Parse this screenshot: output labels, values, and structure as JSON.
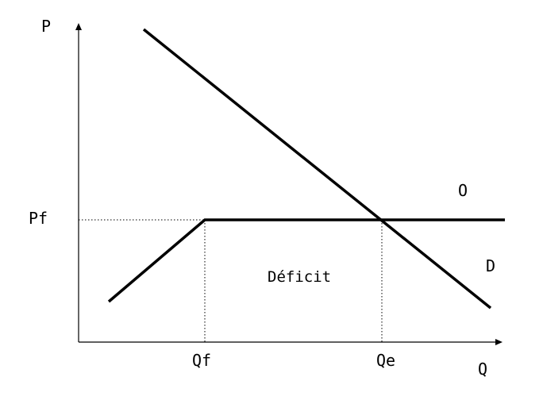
{
  "diagram": {
    "axes": {
      "y_label": "P",
      "x_label": "Q"
    },
    "price_labels": {
      "pf": "Pf"
    },
    "quantity_labels": {
      "qf": "Qf",
      "qe": "Qe"
    },
    "curve_labels": {
      "supply": "O",
      "demand": "D"
    },
    "region_label": "Déficit",
    "line_color": "#000000"
  }
}
